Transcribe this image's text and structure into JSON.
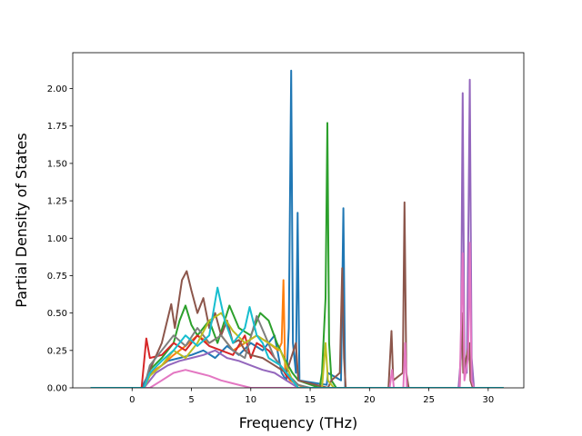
{
  "chart_data": {
    "type": "line",
    "title": "",
    "xlabel": "Frequency (THz)",
    "ylabel": "Partial Density of States",
    "xlim": [
      -5,
      33
    ],
    "ylim": [
      0,
      2.24
    ],
    "xticks": [
      0,
      5,
      10,
      15,
      20,
      25,
      30
    ],
    "yticks": [
      0.0,
      0.25,
      0.5,
      0.75,
      1.0,
      1.25,
      1.5,
      1.75,
      2.0
    ],
    "ytick_labels": [
      "0.00",
      "0.25",
      "0.50",
      "0.75",
      "1.00",
      "1.25",
      "1.50",
      "1.75",
      "2.00"
    ],
    "grid": false,
    "legend": "none",
    "series": [
      {
        "color": "#1f77b4",
        "points": [
          [
            -3.5,
            0
          ],
          [
            0.8,
            0
          ],
          [
            1.3,
            0.08
          ],
          [
            2,
            0.12
          ],
          [
            3,
            0.18
          ],
          [
            4,
            0.2
          ],
          [
            5,
            0.22
          ],
          [
            6,
            0.25
          ],
          [
            7,
            0.2
          ],
          [
            8,
            0.28
          ],
          [
            9,
            0.22
          ],
          [
            10,
            0.3
          ],
          [
            11,
            0.25
          ],
          [
            12,
            0.35
          ],
          [
            12.6,
            0.1
          ],
          [
            13,
            0.05
          ],
          [
            13.2,
            0.4
          ],
          [
            13.4,
            2.12
          ],
          [
            13.55,
            0.3
          ],
          [
            13.8,
            0.1
          ],
          [
            13.95,
            1.17
          ],
          [
            14.1,
            0.05
          ],
          [
            16.4,
            0.02
          ],
          [
            16.5,
            0.1
          ],
          [
            17.6,
            0.05
          ],
          [
            17.8,
            1.2
          ],
          [
            17.95,
            0
          ],
          [
            31.3,
            0
          ]
        ]
      },
      {
        "color": "#ff7f0e",
        "points": [
          [
            -3.5,
            0
          ],
          [
            1,
            0
          ],
          [
            1.5,
            0.1
          ],
          [
            2.5,
            0.15
          ],
          [
            3.5,
            0.22
          ],
          [
            4.5,
            0.28
          ],
          [
            5.5,
            0.35
          ],
          [
            6.5,
            0.3
          ],
          [
            7.5,
            0.35
          ],
          [
            8.5,
            0.25
          ],
          [
            9.5,
            0.3
          ],
          [
            10.5,
            0.35
          ],
          [
            11.5,
            0.3
          ],
          [
            12.3,
            0.25
          ],
          [
            12.6,
            0.3
          ],
          [
            12.75,
            0.72
          ],
          [
            12.9,
            0.1
          ],
          [
            13.3,
            0.05
          ],
          [
            14,
            0.02
          ],
          [
            14.5,
            0
          ],
          [
            31.3,
            0
          ]
        ]
      },
      {
        "color": "#2ca02c",
        "points": [
          [
            -3.5,
            0
          ],
          [
            1,
            0
          ],
          [
            1.5,
            0.12
          ],
          [
            2.5,
            0.2
          ],
          [
            3.5,
            0.3
          ],
          [
            4,
            0.45
          ],
          [
            4.5,
            0.55
          ],
          [
            5,
            0.42
          ],
          [
            5.5,
            0.35
          ],
          [
            6.5,
            0.45
          ],
          [
            7.2,
            0.3
          ],
          [
            8.2,
            0.55
          ],
          [
            9,
            0.4
          ],
          [
            10,
            0.35
          ],
          [
            10.8,
            0.5
          ],
          [
            11.5,
            0.45
          ],
          [
            12.2,
            0.3
          ],
          [
            12.8,
            0.2
          ],
          [
            13.5,
            0.1
          ],
          [
            14,
            0.05
          ],
          [
            15.8,
            0
          ],
          [
            16,
            0.1
          ],
          [
            16.3,
            0.6
          ],
          [
            16.45,
            1.77
          ],
          [
            16.6,
            0.3
          ],
          [
            16.8,
            0.05
          ],
          [
            17.2,
            0
          ],
          [
            31.3,
            0
          ]
        ]
      },
      {
        "color": "#d62728",
        "points": [
          [
            -3.5,
            0
          ],
          [
            0.8,
            0
          ],
          [
            1.2,
            0.33
          ],
          [
            1.5,
            0.2
          ],
          [
            2.5,
            0.22
          ],
          [
            3.5,
            0.3
          ],
          [
            4.5,
            0.25
          ],
          [
            5.5,
            0.35
          ],
          [
            6.5,
            0.28
          ],
          [
            7.5,
            0.25
          ],
          [
            8.5,
            0.22
          ],
          [
            9.5,
            0.35
          ],
          [
            10,
            0.2
          ],
          [
            10.5,
            0.3
          ],
          [
            11.5,
            0.25
          ],
          [
            12.5,
            0.15
          ],
          [
            13,
            0.08
          ],
          [
            13.5,
            0.05
          ],
          [
            14,
            0
          ],
          [
            31.3,
            0
          ]
        ]
      },
      {
        "color": "#9467bd",
        "points": [
          [
            -3.5,
            0
          ],
          [
            1,
            0
          ],
          [
            2,
            0.1
          ],
          [
            3,
            0.15
          ],
          [
            4,
            0.18
          ],
          [
            5,
            0.2
          ],
          [
            6,
            0.22
          ],
          [
            7,
            0.25
          ],
          [
            8,
            0.2
          ],
          [
            9,
            0.18
          ],
          [
            10,
            0.15
          ],
          [
            11,
            0.12
          ],
          [
            12,
            0.1
          ],
          [
            13,
            0.05
          ],
          [
            14,
            0
          ],
          [
            27.5,
            0
          ],
          [
            27.7,
            0.2
          ],
          [
            27.85,
            1.97
          ],
          [
            28,
            0.2
          ],
          [
            28.2,
            0.1
          ],
          [
            28.35,
            1.2
          ],
          [
            28.45,
            2.06
          ],
          [
            28.6,
            0.2
          ],
          [
            28.8,
            0
          ],
          [
            31.3,
            0
          ]
        ]
      },
      {
        "color": "#8c564b",
        "points": [
          [
            -3.5,
            0
          ],
          [
            1,
            0
          ],
          [
            1.5,
            0.12
          ],
          [
            2.5,
            0.3
          ],
          [
            3.3,
            0.56
          ],
          [
            3.6,
            0.4
          ],
          [
            4.2,
            0.72
          ],
          [
            4.6,
            0.78
          ],
          [
            5,
            0.65
          ],
          [
            5.5,
            0.5
          ],
          [
            6,
            0.6
          ],
          [
            6.5,
            0.4
          ],
          [
            7,
            0.5
          ],
          [
            7.5,
            0.35
          ],
          [
            8,
            0.45
          ],
          [
            8.5,
            0.3
          ],
          [
            9,
            0.32
          ],
          [
            9.5,
            0.25
          ],
          [
            10,
            0.22
          ],
          [
            11,
            0.2
          ],
          [
            12,
            0.15
          ],
          [
            13,
            0.1
          ],
          [
            13.8,
            0.3
          ],
          [
            14,
            0.05
          ],
          [
            16.5,
            0
          ],
          [
            16.8,
            0.05
          ],
          [
            17.5,
            0.1
          ],
          [
            17.7,
            0.8
          ],
          [
            17.85,
            0.2
          ],
          [
            18,
            0
          ],
          [
            21.6,
            0
          ],
          [
            21.85,
            0.38
          ],
          [
            22,
            0.05
          ],
          [
            22.8,
            0.1
          ],
          [
            22.95,
            1.24
          ],
          [
            23.1,
            0.1
          ],
          [
            23.3,
            0
          ],
          [
            27.6,
            0
          ],
          [
            27.8,
            0.5
          ],
          [
            27.9,
            0.1
          ],
          [
            28.4,
            0.3
          ],
          [
            28.5,
            0.05
          ],
          [
            28.7,
            0
          ],
          [
            31.3,
            0
          ]
        ]
      },
      {
        "color": "#e377c2",
        "points": [
          [
            -3.5,
            0
          ],
          [
            1.5,
            0
          ],
          [
            2.5,
            0.05
          ],
          [
            3.5,
            0.1
          ],
          [
            4.5,
            0.12
          ],
          [
            5.5,
            0.1
          ],
          [
            6.5,
            0.08
          ],
          [
            7.5,
            0.05
          ],
          [
            8.5,
            0.03
          ],
          [
            10,
            0
          ],
          [
            21.7,
            0
          ],
          [
            21.9,
            0.12
          ],
          [
            22.05,
            0
          ],
          [
            22.85,
            0
          ],
          [
            23,
            0.3
          ],
          [
            23.15,
            0
          ],
          [
            27.6,
            0
          ],
          [
            27.85,
            0.9
          ],
          [
            28,
            0.05
          ],
          [
            28.3,
            0.2
          ],
          [
            28.45,
            0.97
          ],
          [
            28.6,
            0.05
          ],
          [
            28.8,
            0
          ],
          [
            31.3,
            0
          ]
        ]
      },
      {
        "color": "#7f7f7f",
        "points": [
          [
            -3.5,
            0
          ],
          [
            1,
            0
          ],
          [
            1.5,
            0.15
          ],
          [
            2.5,
            0.25
          ],
          [
            3.5,
            0.35
          ],
          [
            4.5,
            0.28
          ],
          [
            5.5,
            0.4
          ],
          [
            6.5,
            0.3
          ],
          [
            7.5,
            0.35
          ],
          [
            8.5,
            0.25
          ],
          [
            9.5,
            0.2
          ],
          [
            10.5,
            0.48
          ],
          [
            11.2,
            0.35
          ],
          [
            12,
            0.2
          ],
          [
            13,
            0.1
          ],
          [
            14,
            0.02
          ],
          [
            15,
            0
          ],
          [
            31.3,
            0
          ]
        ]
      },
      {
        "color": "#bcbd22",
        "points": [
          [
            -3.5,
            0
          ],
          [
            1,
            0
          ],
          [
            1.5,
            0.08
          ],
          [
            2.5,
            0.15
          ],
          [
            3.5,
            0.25
          ],
          [
            4.5,
            0.2
          ],
          [
            5.5,
            0.3
          ],
          [
            6.5,
            0.45
          ],
          [
            7.5,
            0.5
          ],
          [
            8.5,
            0.38
          ],
          [
            9.5,
            0.3
          ],
          [
            10.5,
            0.35
          ],
          [
            11.5,
            0.3
          ],
          [
            12.5,
            0.25
          ],
          [
            13,
            0.15
          ],
          [
            13.5,
            0.05
          ],
          [
            14,
            0
          ],
          [
            16,
            0
          ],
          [
            16.3,
            0.3
          ],
          [
            16.5,
            0.05
          ],
          [
            17,
            0
          ],
          [
            31.3,
            0
          ]
        ]
      },
      {
        "color": "#17becf",
        "points": [
          [
            -3.5,
            0
          ],
          [
            1,
            0
          ],
          [
            1.5,
            0.1
          ],
          [
            2.5,
            0.18
          ],
          [
            3.5,
            0.25
          ],
          [
            4.5,
            0.35
          ],
          [
            5.5,
            0.28
          ],
          [
            6.5,
            0.35
          ],
          [
            7.2,
            0.67
          ],
          [
            7.8,
            0.45
          ],
          [
            8.5,
            0.3
          ],
          [
            9.5,
            0.4
          ],
          [
            9.9,
            0.54
          ],
          [
            10.5,
            0.35
          ],
          [
            11,
            0.3
          ],
          [
            11.5,
            0.2
          ],
          [
            12.5,
            0.15
          ],
          [
            13,
            0.1
          ],
          [
            13.5,
            0.05
          ],
          [
            14,
            0
          ],
          [
            31.3,
            0
          ]
        ]
      }
    ]
  }
}
